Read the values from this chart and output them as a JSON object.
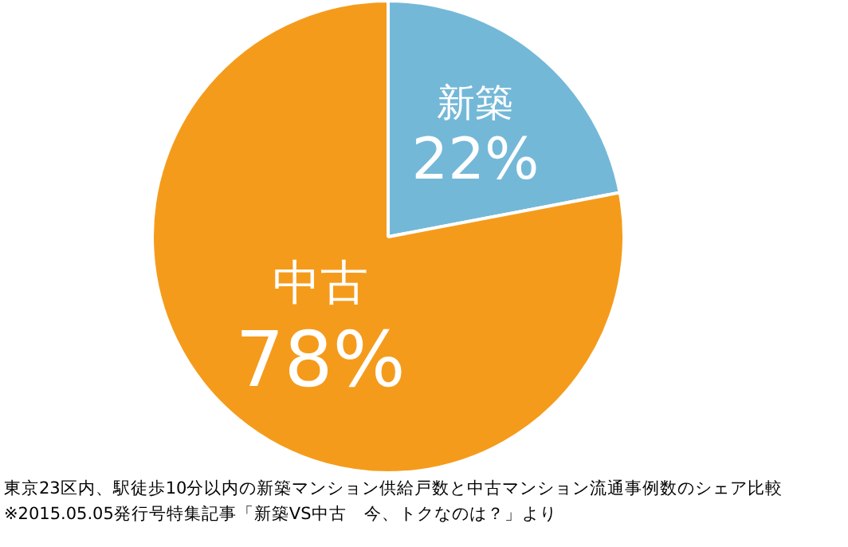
{
  "chart_data": {
    "type": "pie",
    "categories": [
      "新築",
      "中古"
    ],
    "values": [
      22,
      78
    ],
    "colors": [
      "#74b8d8",
      "#f59b1b"
    ],
    "value_labels": [
      "22%",
      "78%"
    ],
    "annotations": [
      "東京23区内、駅徒歩10分以内の新築マンション供給戸数と中古マンション流通事例数のシェア比較",
      "※2015.05.05発行号特集記事「新築VS中古　今、トクなのは？」より"
    ]
  }
}
